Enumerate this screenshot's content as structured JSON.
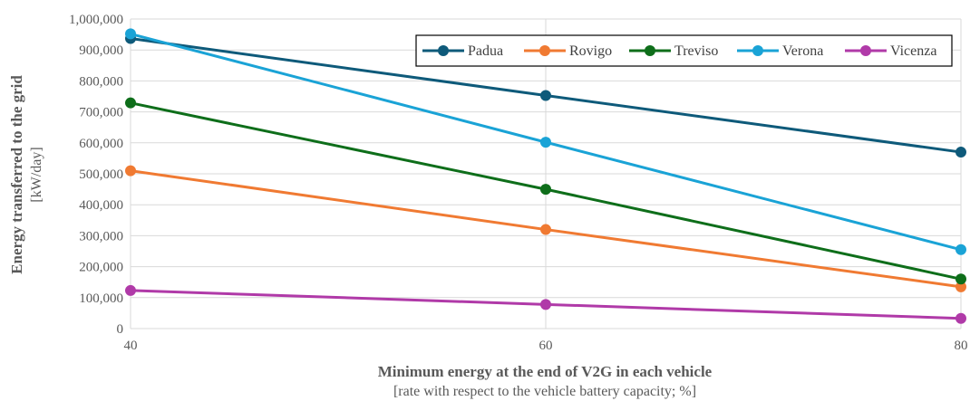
{
  "chart_data": {
    "type": "line",
    "x": [
      40,
      60,
      80
    ],
    "xlim": [
      40,
      80
    ],
    "ylim": [
      0,
      1000000
    ],
    "yticks": [
      "0",
      "100,000",
      "200,000",
      "300,000",
      "400,000",
      "500,000",
      "600,000",
      "700,000",
      "800,000",
      "900,000",
      "1,000,000"
    ],
    "xticks": [
      "40",
      "60",
      "80"
    ],
    "ylabel": "Energy transferred to the grid",
    "ylabel_sub": "[kW/day]",
    "xlabel": "Minimum energy at the end of V2G in each vehicle",
    "xlabel_sub": "[rate with respect to the vehicle battery capacity; %]",
    "grid": true,
    "legend_position": "top-right",
    "series": [
      {
        "name": "Padua",
        "color": "#0e5a7a",
        "values": [
          937000,
          753000,
          570000
        ]
      },
      {
        "name": "Rovigo",
        "color": "#f07a32",
        "values": [
          510000,
          320000,
          135000
        ]
      },
      {
        "name": "Treviso",
        "color": "#0e6e1a",
        "values": [
          729000,
          450000,
          160000
        ]
      },
      {
        "name": "Verona",
        "color": "#1aa3d6",
        "values": [
          952000,
          602000,
          255000
        ]
      },
      {
        "name": "Vicenza",
        "color": "#b03aa8",
        "values": [
          123000,
          78000,
          33000
        ]
      }
    ]
  }
}
